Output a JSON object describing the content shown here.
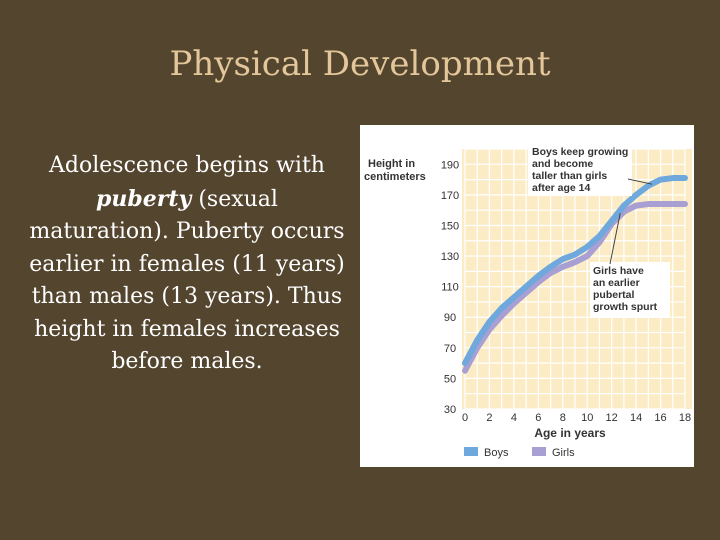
{
  "slide": {
    "title": "Physical Development",
    "body": {
      "before": "Adolescence begins with ",
      "emphasis": "puberty",
      "after": " (sexual maturation). Puberty occurs earlier in females (11 years) than males (13 years). Thus height in females increases before males."
    }
  },
  "chart_data": {
    "type": "line",
    "ylabel": "Height in centimeters",
    "xlabel": "Age in years",
    "x": [
      0,
      1,
      2,
      3,
      4,
      5,
      6,
      7,
      8,
      9,
      10,
      11,
      12,
      13,
      14,
      15,
      16,
      17,
      18
    ],
    "xticks": [
      "0",
      "2",
      "4",
      "6",
      "8",
      "10",
      "12",
      "14",
      "16",
      "18"
    ],
    "yticks": [
      "30",
      "50",
      "70",
      "90",
      "110",
      "130",
      "150",
      "170",
      "190"
    ],
    "xlim": [
      0,
      18
    ],
    "ylim": [
      30,
      200
    ],
    "grid": true,
    "legend_position": "bottom",
    "series": [
      {
        "name": "Boys",
        "color": "#6ea8dc",
        "values": [
          60,
          75,
          87,
          96,
          103,
          110,
          117,
          123,
          128,
          131,
          136,
          143,
          153,
          163,
          170,
          176,
          180,
          181,
          181
        ]
      },
      {
        "name": "Girls",
        "color": "#a89fd3",
        "values": [
          55,
          70,
          82,
          91,
          99,
          106,
          113,
          119,
          123,
          126,
          130,
          139,
          151,
          159,
          163,
          164,
          164,
          164,
          164
        ]
      }
    ],
    "annotations": [
      {
        "text": [
          "Boys keep growing",
          "and become",
          "taller than girls",
          "after age 14"
        ]
      },
      {
        "text": [
          "Girls have",
          "an earlier",
          "pubertal",
          "growth spurt"
        ]
      }
    ]
  }
}
